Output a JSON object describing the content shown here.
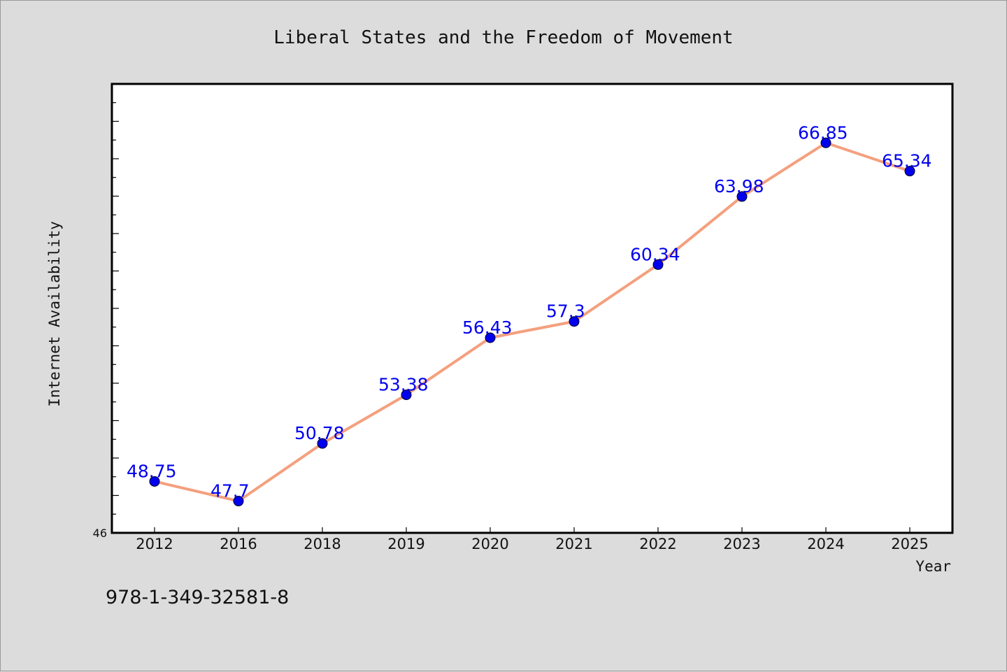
{
  "chart_data": {
    "type": "line",
    "title": "Liberal States and the Freedom of Movement",
    "xlabel": "Year",
    "ylabel": "Internet Availability",
    "categories": [
      "2012",
      "2016",
      "2018",
      "2019",
      "2020",
      "2021",
      "2022",
      "2023",
      "2024",
      "2025"
    ],
    "series": [
      {
        "values": [
          48.75,
          47.7,
          50.78,
          53.38,
          56.43,
          57.3,
          60.34,
          63.98,
          66.85,
          65.34
        ],
        "labels": [
          "48.75",
          "47.7",
          "50.78",
          "53.38",
          "56.43",
          "57.3",
          "60.34",
          "63.98",
          "66.85",
          "65.34"
        ],
        "line_color": "#f4a07e",
        "marker_color": "#0000ee"
      }
    ],
    "ylim": [
      46,
      70
    ],
    "yticks_labeled": [
      "46"
    ],
    "grid": false,
    "legend": "none"
  },
  "footer": {
    "isbn": "978-1-349-32581-8"
  },
  "colors": {
    "background": "#dcdcdc",
    "plot_background": "#ffffff",
    "axis": "#000000"
  }
}
